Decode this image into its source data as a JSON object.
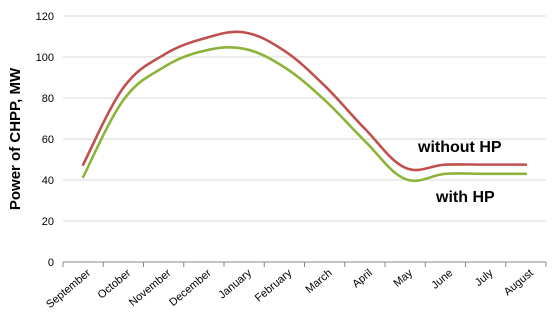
{
  "chart_data": {
    "type": "line",
    "title": "",
    "xlabel": "",
    "ylabel": "Power of CHPP, MW",
    "ylim": [
      0,
      120
    ],
    "yticks": [
      0,
      20,
      40,
      60,
      80,
      100,
      120
    ],
    "grid": true,
    "categories": [
      "September",
      "October",
      "November",
      "December",
      "January",
      "February",
      "March",
      "April",
      "May",
      "June",
      "July",
      "August"
    ],
    "series": [
      {
        "name": "without HP",
        "color": "#c0504d",
        "values": [
          47.5,
          85,
          101,
          109,
          112,
          103,
          86,
          65,
          46,
          47.5,
          47.5,
          47.5
        ]
      },
      {
        "name": "with HP",
        "color": "#8db33a",
        "values": [
          41.5,
          79,
          95,
          103,
          104,
          95,
          79,
          59,
          40.5,
          43,
          43,
          43
        ]
      }
    ],
    "annotations": [
      "without HP",
      "with HP"
    ]
  }
}
